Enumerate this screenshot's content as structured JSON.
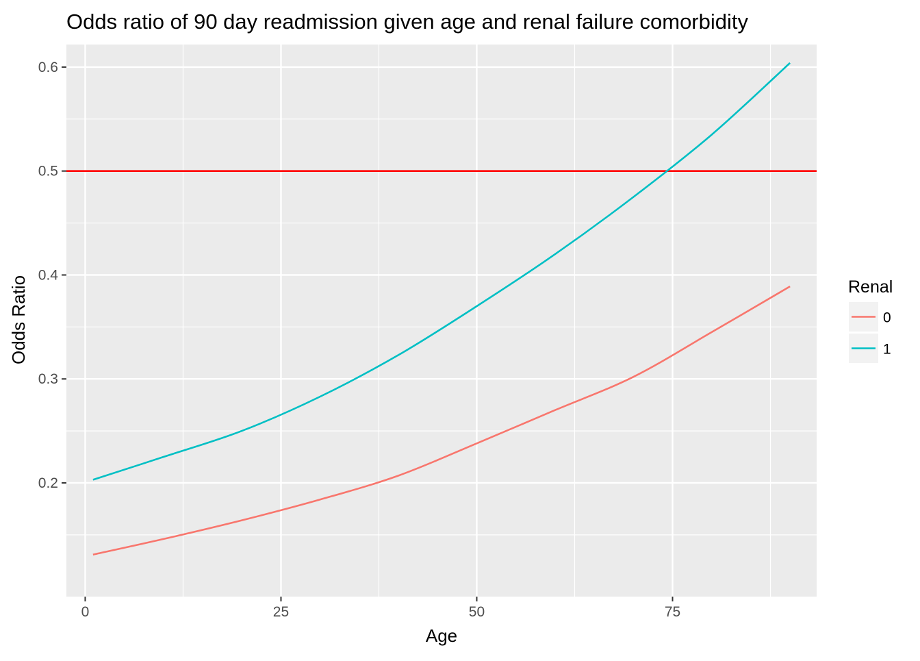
{
  "chart_data": {
    "type": "line",
    "title": "Odds ratio of 90 day readmission given age and renal failure comorbidity",
    "xlabel": "Age",
    "ylabel": "Odds Ratio",
    "xlim": [
      -2.4,
      93.4
    ],
    "ylim": [
      0.0906,
      0.6217
    ],
    "x_ticks": [
      0,
      25,
      50,
      75
    ],
    "y_ticks": [
      0.2,
      0.3,
      0.4,
      0.5,
      0.6
    ],
    "grid": true,
    "reference_line": {
      "y": 0.5,
      "color": "#ff0000"
    },
    "legend": {
      "title": "Renal",
      "position": "right"
    },
    "series": [
      {
        "name": "0",
        "color": "#f8766d",
        "x": [
          1,
          10,
          20,
          30,
          40,
          50,
          60,
          70,
          80,
          90
        ],
        "y": [
          0.131,
          0.146,
          0.164,
          0.184,
          0.207,
          0.238,
          0.27,
          0.302,
          0.345,
          0.389
        ]
      },
      {
        "name": "1",
        "color": "#00bfc4",
        "x": [
          1,
          10,
          20,
          30,
          40,
          50,
          60,
          70,
          80,
          90
        ],
        "y": [
          0.203,
          0.225,
          0.25,
          0.283,
          0.323,
          0.37,
          0.42,
          0.475,
          0.535,
          0.604
        ]
      }
    ]
  }
}
